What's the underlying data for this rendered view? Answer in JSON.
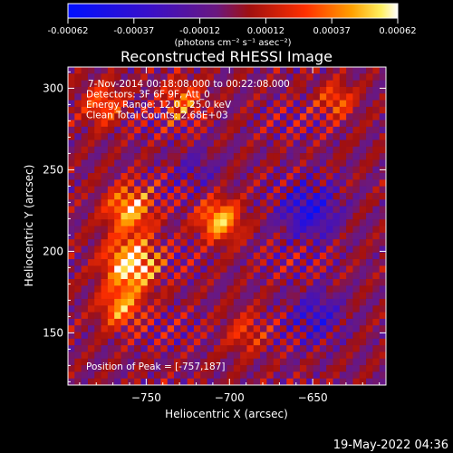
{
  "colorbar": {
    "ticks": [
      "-0.00062",
      "-0.00037",
      "-0.00012",
      "0.00012",
      "0.00037",
      "0.00062"
    ],
    "unit_label": "(photons cm⁻² s⁻¹ asec⁻²)"
  },
  "chart_data": {
    "type": "heatmap",
    "title": "Reconstructed RHESSI Image",
    "xlabel": "Heliocentric X (arcsec)",
    "ylabel": "Heliocentric Y (arcsec)",
    "xlim": [
      -797,
      -606
    ],
    "ylim": [
      118,
      313
    ],
    "x_ticks": [
      -750,
      -700,
      -650
    ],
    "y_ticks": [
      150,
      200,
      250,
      300
    ],
    "x_tick_labels": [
      "−750",
      "−700",
      "−650"
    ],
    "y_tick_labels": [
      "150",
      "200",
      "250",
      "300"
    ],
    "colormap": "hot-cold (blue-purple-red-yellow-white)",
    "value_range": [
      -0.00062,
      0.00062
    ],
    "peak": [
      -757,
      187
    ],
    "sources": [
      {
        "x": -759,
        "y": 192,
        "amplitude": 0.00062,
        "sigma": 11
      },
      {
        "x": -760,
        "y": 226,
        "amplitude": 0.00048,
        "sigma": 10
      },
      {
        "x": -765,
        "y": 165,
        "amplitude": 0.0004,
        "sigma": 9
      },
      {
        "x": -706,
        "y": 219,
        "amplitude": 0.0005,
        "sigma": 9
      },
      {
        "x": -776,
        "y": 290,
        "amplitude": 0.00032,
        "sigma": 9
      },
      {
        "x": -728,
        "y": 292,
        "amplitude": 0.00032,
        "sigma": 9
      },
      {
        "x": -636,
        "y": 292,
        "amplitude": 0.0003,
        "sigma": 8
      },
      {
        "x": -690,
        "y": 150,
        "amplitude": 0.00022,
        "sigma": 9
      },
      {
        "x": -652,
        "y": 225,
        "amplitude": -0.0004,
        "sigma": 12
      },
      {
        "x": -648,
        "y": 160,
        "amplitude": -0.0003,
        "sigma": 11
      },
      {
        "x": -720,
        "y": 250,
        "amplitude": -0.00018,
        "sigma": 9
      }
    ],
    "annotations": [
      "7-Nov-2014 00:18:08.000 to 00:22:08.000",
      "Detectors: 3F 6F 9F, Att_0",
      "Energy Range: 12.0 - 25.0 keV",
      "Clean    Total Counts: 2.68E+03"
    ],
    "peak_label": "Position of Peak = [-757,187]"
  },
  "footer": {
    "timestamp": "19-May-2022 04:36"
  }
}
